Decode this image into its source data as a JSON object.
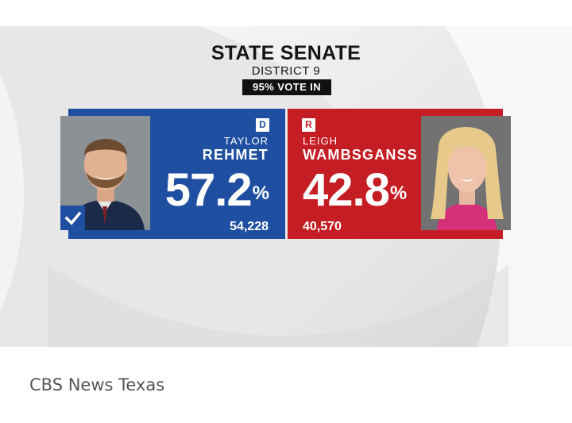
{
  "graphic": {
    "title": "STATE SENATE",
    "subtitle": "DISTRICT 9",
    "votes_in": "95% VOTE IN"
  },
  "candidates": [
    {
      "party": "D",
      "first_name": "TAYLOR",
      "last_name": "REHMET",
      "percent": "57.2",
      "percent_sign": "%",
      "votes": "54,228",
      "winner": true,
      "color": "#1f4fa0"
    },
    {
      "party": "R",
      "first_name": "LEIGH",
      "last_name": "WAMBSGANSS",
      "percent": "42.8",
      "percent_sign": "%",
      "votes": "40,570",
      "winner": false,
      "color": "#c51d24"
    }
  ],
  "caption": "CBS News Texas",
  "icons": {
    "winner": "checkmark-icon"
  }
}
